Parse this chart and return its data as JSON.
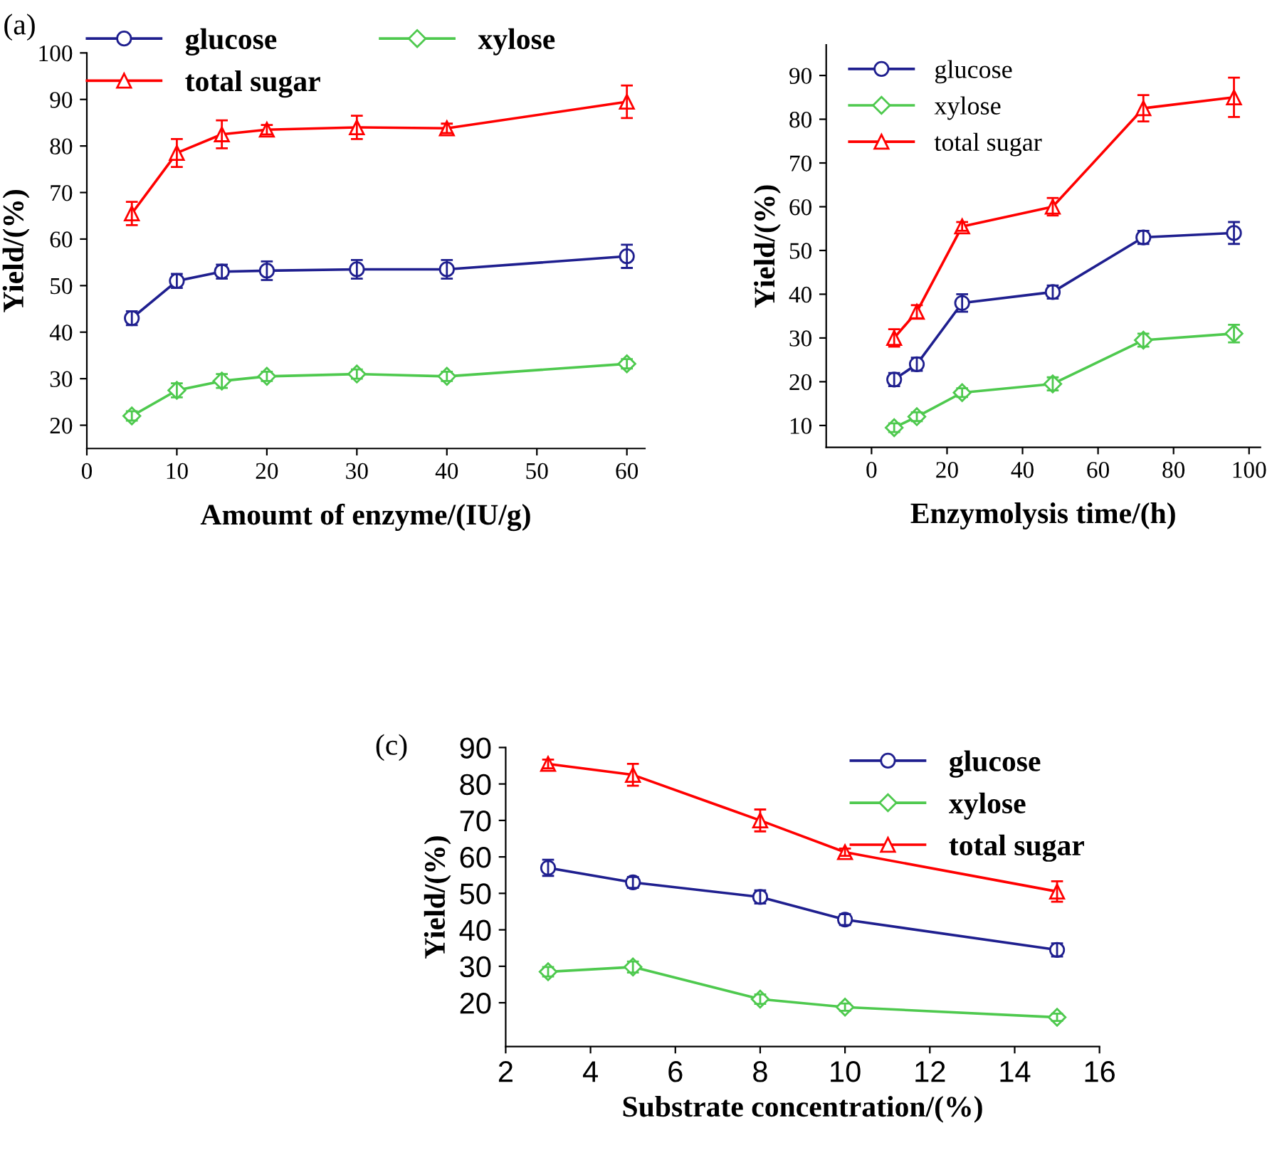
{
  "chart_data": [
    {
      "type": "line",
      "xlabel": "Amoumt of enzyme/(IU/g)",
      "ylabel": "Yield/(%)",
      "annotations": [
        "(a)"
      ],
      "x": [
        5,
        10,
        15,
        20,
        30,
        40,
        60
      ],
      "xlim": [
        0,
        62
      ],
      "xticks": [
        0,
        10,
        20,
        30,
        40,
        50,
        60
      ],
      "ylim": [
        15,
        100
      ],
      "yticks": [
        20,
        30,
        40,
        50,
        60,
        70,
        80,
        90,
        100
      ],
      "grid": false,
      "legend": "top",
      "series": [
        {
          "name": "glucose",
          "color": "#1f1f8f",
          "marker": "circle",
          "values": [
            43,
            51,
            53,
            53.2,
            53.5,
            53.5,
            56.3
          ],
          "errors": [
            1.5,
            1.5,
            1.5,
            2,
            2,
            2,
            2.5
          ]
        },
        {
          "name": "xylose",
          "color": "#4ec94e",
          "marker": "diamond",
          "values": [
            22,
            27.5,
            29.5,
            30.5,
            31,
            30.5,
            33.2
          ],
          "errors": [
            1,
            1.5,
            1.5,
            1,
            1,
            1,
            1
          ]
        },
        {
          "name": "total sugar",
          "color": "#ff0000",
          "marker": "triangle",
          "values": [
            65.5,
            78.5,
            82.5,
            83.5,
            84,
            83.8,
            89.5
          ],
          "errors": [
            2.5,
            3,
            3,
            1,
            2.5,
            1,
            3.5
          ]
        }
      ]
    },
    {
      "type": "line",
      "xlabel": "Enzymolysis time/(h)",
      "ylabel": "Yield/(%)",
      "x": [
        6,
        12,
        24,
        48,
        72,
        96
      ],
      "xlim": [
        -12,
        103
      ],
      "xticks": [
        0,
        20,
        40,
        60,
        80,
        100
      ],
      "ylim": [
        5,
        97
      ],
      "yticks": [
        10,
        20,
        30,
        40,
        50,
        60,
        70,
        80,
        90
      ],
      "grid": false,
      "legend": "top left",
      "series": [
        {
          "name": "glucose",
          "color": "#1f1f8f",
          "marker": "circle",
          "values": [
            20.5,
            24,
            38,
            40.5,
            53,
            54
          ],
          "errors": [
            1.5,
            1.5,
            2,
            1.5,
            1.5,
            2.5
          ]
        },
        {
          "name": "xylose",
          "color": "#4ec94e",
          "marker": "diamond",
          "values": [
            9.5,
            12,
            17.5,
            19.5,
            29.5,
            31
          ],
          "errors": [
            1,
            1,
            1,
            1.5,
            1.5,
            2
          ]
        },
        {
          "name": "total sugar",
          "color": "#ff0000",
          "marker": "triangle",
          "values": [
            30,
            36,
            55.5,
            60,
            82.5,
            85
          ],
          "errors": [
            2,
            1.5,
            1,
            2,
            3,
            4.5
          ]
        }
      ]
    },
    {
      "type": "line",
      "xlabel": "Substrate concentration/(%)",
      "ylabel": "Yield/(%)",
      "annotations": [
        "(c)"
      ],
      "x": [
        3,
        5,
        8,
        10,
        15
      ],
      "xlim": [
        2,
        16
      ],
      "xticks": [
        2,
        4,
        6,
        8,
        10,
        12,
        14,
        16
      ],
      "ylim": [
        8,
        90
      ],
      "yticks": [
        20,
        30,
        40,
        50,
        60,
        70,
        80,
        90
      ],
      "grid": false,
      "legend": "top right",
      "series": [
        {
          "name": "glucose",
          "color": "#1f1f8f",
          "marker": "circle",
          "values": [
            57,
            53,
            49,
            42.8,
            34.5
          ],
          "errors": [
            2.2,
            1.5,
            1.8,
            1.5,
            1.8
          ]
        },
        {
          "name": "xylose",
          "color": "#4ec94e",
          "marker": "diamond",
          "values": [
            28.5,
            29.8,
            21,
            18.8,
            16
          ],
          "errors": [
            1.3,
            1.5,
            1.3,
            1,
            1
          ]
        },
        {
          "name": "total sugar",
          "color": "#ff0000",
          "marker": "triangle",
          "values": [
            85.5,
            82.5,
            70,
            61.3,
            50.5
          ],
          "errors": [
            1.2,
            3,
            3,
            1,
            2.8
          ]
        }
      ]
    }
  ]
}
